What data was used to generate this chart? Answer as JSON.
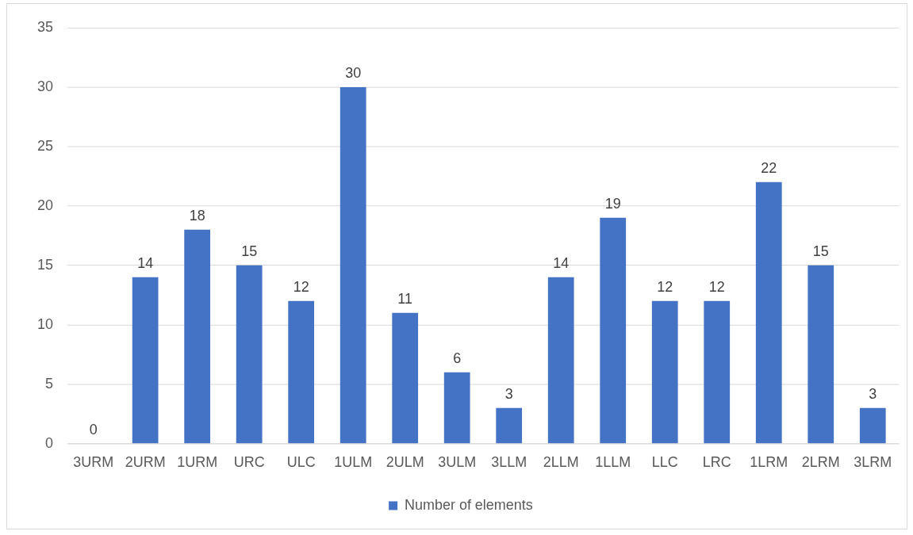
{
  "chart_data": {
    "type": "bar",
    "categories": [
      "3URM",
      "2URM",
      "1URM",
      "URC",
      "ULC",
      "1ULM",
      "2ULM",
      "3ULM",
      "3LLM",
      "2LLM",
      "1LLM",
      "LLC",
      "LRC",
      "1LRM",
      "2LRM",
      "3LRM"
    ],
    "series": [
      {
        "name": "Number of elements",
        "color": "#4472c4",
        "values": [
          0,
          14,
          18,
          15,
          12,
          30,
          11,
          6,
          3,
          14,
          19,
          12,
          12,
          22,
          15,
          3
        ]
      }
    ],
    "ylim": [
      0,
      35
    ],
    "yticks": [
      0,
      5,
      10,
      15,
      20,
      25,
      30,
      35
    ],
    "grid": "y",
    "legend": "bottom",
    "data_labels": true
  }
}
